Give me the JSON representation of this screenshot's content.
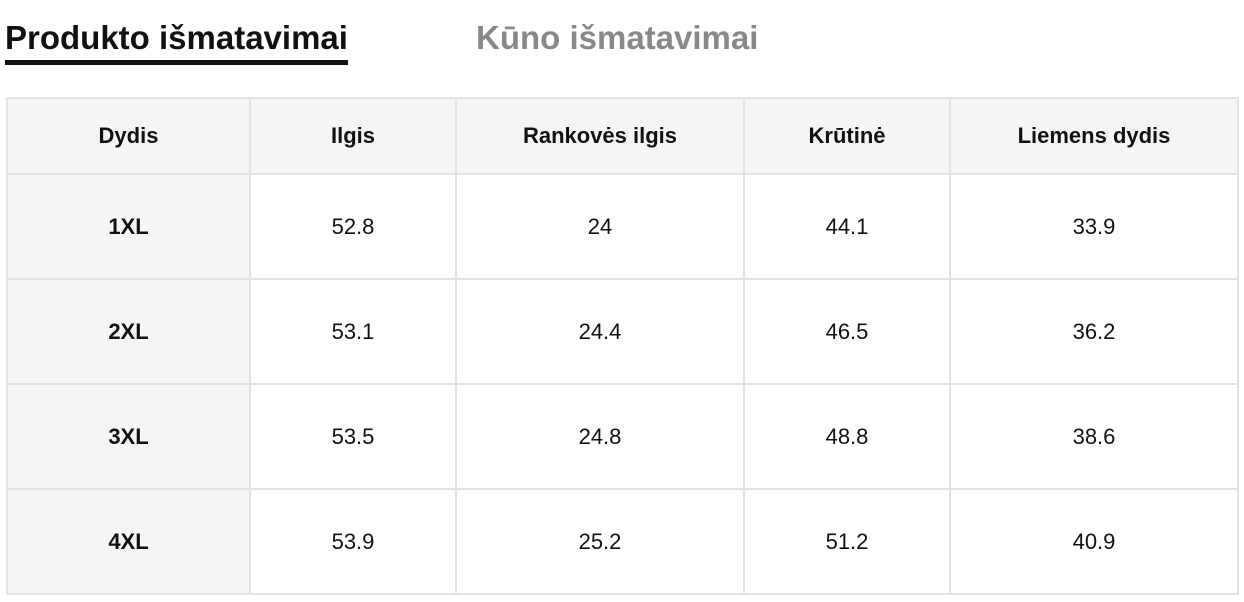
{
  "tabs": [
    {
      "label": "Produkto išmatavimai",
      "active": true
    },
    {
      "label": "Kūno išmatavimai",
      "active": false
    }
  ],
  "table": {
    "header": [
      "Dydis",
      "Ilgis",
      "Rankovės ilgis",
      "Krūtinė",
      "Liemens dydis"
    ],
    "rows": [
      [
        "1XL",
        52.8,
        24,
        44.1,
        33.9
      ],
      [
        "2XL",
        53.1,
        24.4,
        46.5,
        36.2
      ],
      [
        "3XL",
        53.5,
        24.8,
        48.8,
        38.6
      ],
      [
        "4XL",
        53.9,
        25.2,
        51.2,
        40.9
      ]
    ]
  }
}
